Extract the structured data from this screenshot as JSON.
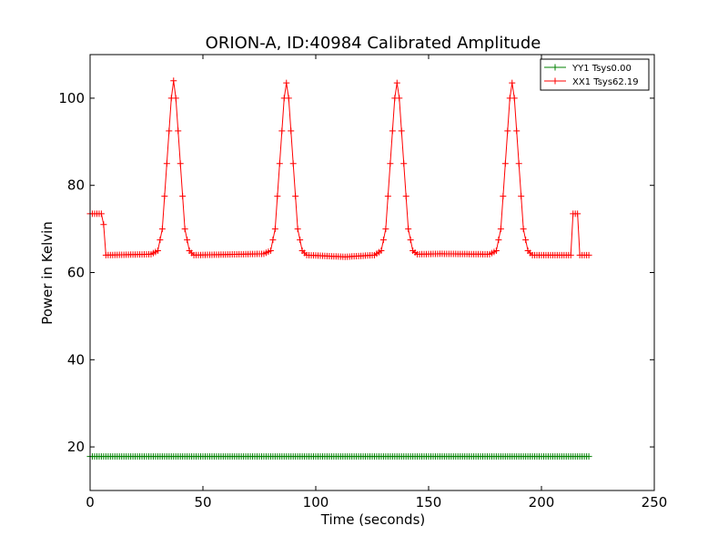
{
  "chart_data": {
    "type": "line",
    "title": "ORION-A, ID:40984 Calibrated Amplitude",
    "xlabel": "Time (seconds)",
    "ylabel": "Power in Kelvin",
    "xlim": [
      0,
      250
    ],
    "ylim": [
      10,
      110
    ],
    "x_ticks": [
      "0",
      "50",
      "100",
      "150",
      "200",
      "250"
    ],
    "y_ticks": [
      "20",
      "40",
      "60",
      "80",
      "100"
    ],
    "grid": false,
    "legend_position": "top-right",
    "marker": "+",
    "series": [
      {
        "name": "YY1 Tsys0.00",
        "color": "#008000",
        "x_start": 0,
        "x_end": 221,
        "x_step": 1,
        "keypoints": [
          [
            0,
            17.8
          ],
          [
            221,
            17.8
          ]
        ]
      },
      {
        "name": "XX1 Tsys62.19",
        "color": "#ff0000",
        "x_start": 0,
        "x_end": 221,
        "x_step": 1,
        "keypoints": [
          [
            0,
            73.5
          ],
          [
            5,
            73.5
          ],
          [
            6,
            71
          ],
          [
            7,
            64
          ],
          [
            27,
            64.2
          ],
          [
            30,
            65
          ],
          [
            32,
            70
          ],
          [
            34,
            85
          ],
          [
            36,
            100
          ],
          [
            37,
            104
          ],
          [
            38,
            100
          ],
          [
            40,
            85
          ],
          [
            42,
            70
          ],
          [
            44,
            65
          ],
          [
            46,
            64
          ],
          [
            77,
            64.3
          ],
          [
            80,
            65
          ],
          [
            82,
            70
          ],
          [
            84,
            85
          ],
          [
            86,
            100
          ],
          [
            87,
            103.5
          ],
          [
            88,
            100
          ],
          [
            90,
            85
          ],
          [
            92,
            70
          ],
          [
            94,
            65
          ],
          [
            96,
            64
          ],
          [
            113,
            63.6
          ],
          [
            126,
            64
          ],
          [
            129,
            65
          ],
          [
            131,
            70
          ],
          [
            133,
            85
          ],
          [
            135,
            100
          ],
          [
            136,
            103.5
          ],
          [
            137,
            100
          ],
          [
            139,
            85
          ],
          [
            141,
            70
          ],
          [
            143,
            65
          ],
          [
            145,
            64.2
          ],
          [
            155,
            64.3
          ],
          [
            177,
            64.2
          ],
          [
            180,
            65
          ],
          [
            182,
            70
          ],
          [
            184,
            85
          ],
          [
            186,
            100
          ],
          [
            187,
            103.5
          ],
          [
            188,
            100
          ],
          [
            190,
            85
          ],
          [
            192,
            70
          ],
          [
            194,
            65
          ],
          [
            196,
            64
          ],
          [
            213,
            64
          ],
          [
            214,
            73.5
          ],
          [
            216,
            73.5
          ],
          [
            217,
            64
          ],
          [
            221,
            64
          ]
        ]
      }
    ]
  }
}
